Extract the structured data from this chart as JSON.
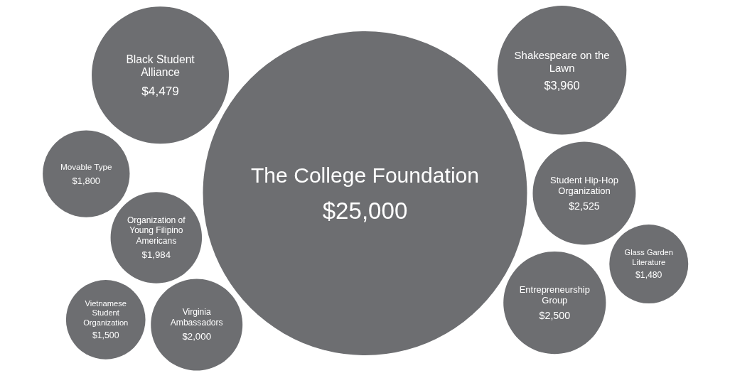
{
  "chart_data": {
    "type": "other",
    "categories": [
      "The College Foundation",
      "Black Student Alliance",
      "Shakespeare on the Lawn",
      "Student Hip-Hop Organization",
      "Entrepreneurship Group",
      "Virginia Ambassadors",
      "Organization of Young Filipino Americans",
      "Movable Type",
      "Vietnamese Student Organization",
      "Glass Garden Literature"
    ],
    "values": [
      25000,
      4479,
      3960,
      2525,
      2500,
      2000,
      1984,
      1800,
      1500,
      1480
    ],
    "value_labels": [
      "$25,000",
      "$4,479",
      "$3,960",
      "$2,525",
      "$2,500",
      "$2,000",
      "$1,984",
      "$1,800",
      "$1,500",
      "$1,480"
    ],
    "color": "#6d6e71"
  }
}
